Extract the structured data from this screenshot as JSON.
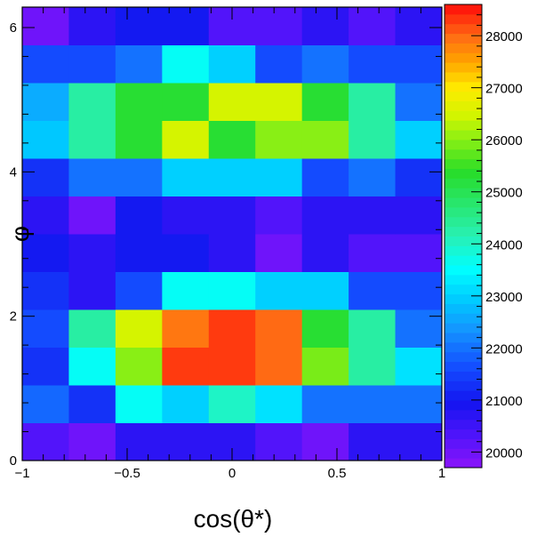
{
  "chart_data": {
    "type": "heatmap",
    "title": "",
    "xlabel": "cos(θ*)",
    "ylabel": "φ",
    "xlim": [
      -1,
      1
    ],
    "ylim": [
      0,
      6.2832
    ],
    "x_edges": [
      -1,
      -0.7778,
      -0.5556,
      -0.3333,
      -0.1111,
      0.1111,
      0.3333,
      0.5556,
      0.7778,
      1
    ],
    "y_bins": 12,
    "x_ticks": [
      -1,
      -0.5,
      0,
      0.5,
      1
    ],
    "x_tick_labels": [
      "−1",
      "−0.5",
      "0",
      "0.5",
      "1"
    ],
    "y_ticks": [
      0,
      2,
      4,
      6
    ],
    "y_tick_labels": [
      "0",
      "2",
      "4",
      "6"
    ],
    "z_range": [
      19700,
      28600
    ],
    "z_ticks": [
      20000,
      21000,
      22000,
      23000,
      24000,
      25000,
      26000,
      27000,
      28000
    ],
    "z_tick_labels": [
      "20000",
      "21000",
      "22000",
      "23000",
      "24000",
      "25000",
      "26000",
      "27000",
      "28000"
    ],
    "values_rows_bottom_to_top": [
      [
        20300,
        20000,
        20700,
        20700,
        20700,
        20300,
        20000,
        20700,
        20700
      ],
      [
        21900,
        21300,
        23600,
        23000,
        24000,
        23200,
        22000,
        22000,
        22000
      ],
      [
        21300,
        23600,
        26000,
        28300,
        28300,
        28000,
        25900,
        24300,
        23200
      ],
      [
        21600,
        24300,
        26500,
        27900,
        28300,
        28000,
        25300,
        24300,
        22000
      ],
      [
        21300,
        20700,
        21600,
        23600,
        23600,
        23000,
        23000,
        21600,
        21600
      ],
      [
        21000,
        20700,
        21000,
        21000,
        20700,
        20000,
        20700,
        20300,
        20300
      ],
      [
        20700,
        20000,
        21000,
        20700,
        20700,
        20300,
        20700,
        20700,
        20700
      ],
      [
        21300,
        22000,
        22000,
        23000,
        23000,
        23000,
        21600,
        22000,
        21300
      ],
      [
        22900,
        24300,
        25300,
        26500,
        25300,
        26000,
        26000,
        24300,
        23000
      ],
      [
        22600,
        24300,
        25300,
        25300,
        26500,
        26500,
        25300,
        24300,
        22000
      ],
      [
        21600,
        21600,
        22000,
        23600,
        23000,
        21600,
        22000,
        21600,
        21600
      ],
      [
        20000,
        20700,
        21000,
        21000,
        20300,
        20300,
        20700,
        20300,
        20700
      ]
    ]
  }
}
